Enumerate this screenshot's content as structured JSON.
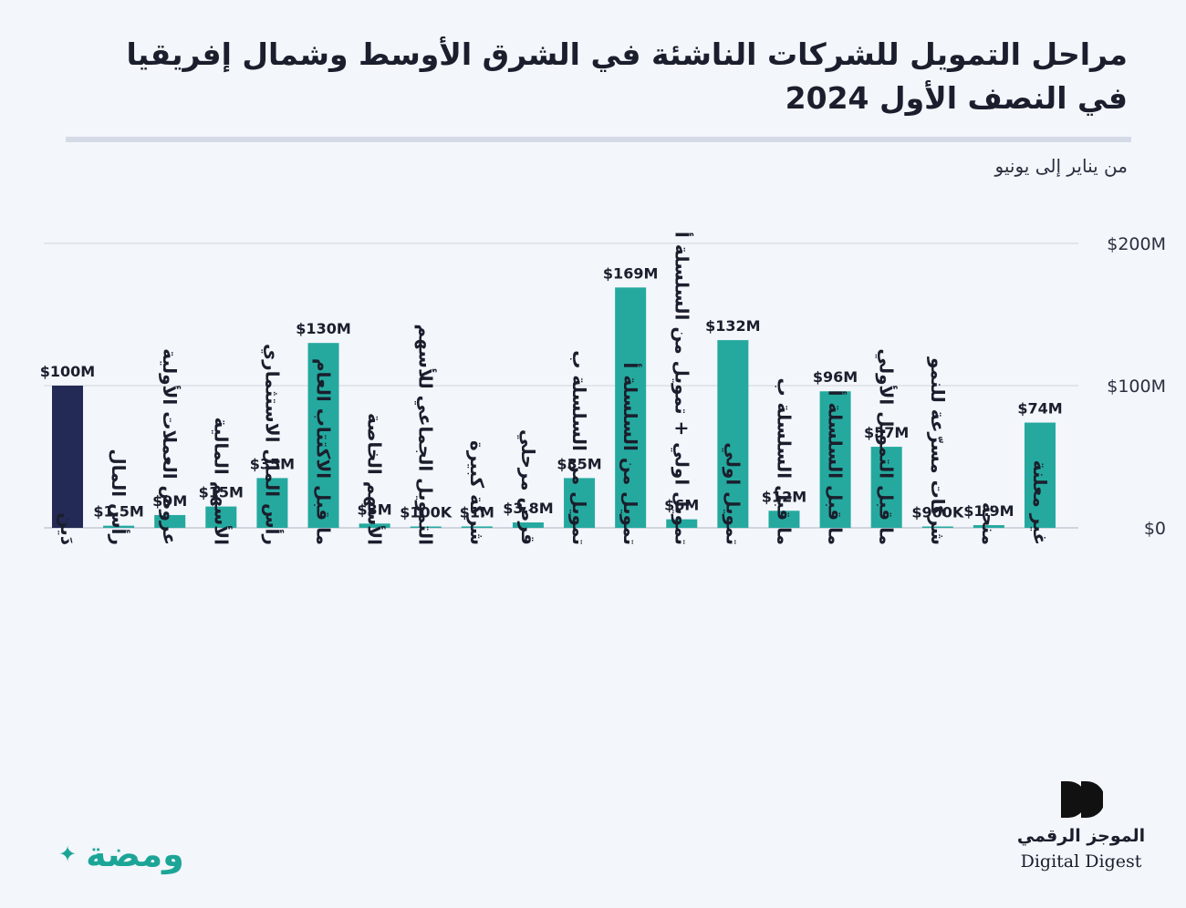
{
  "title": "مراحل التمويل للشركات الناشئة في الشرق الأوسط وشمال إفريقيا في النصف الأول 2024",
  "subtitle": "من يناير إلى يونيو",
  "watermark": "ومضة",
  "watermark_icon": "sparkle-icon",
  "brand": {
    "name_ar": "الموجز الرقمي",
    "name_en": "Digital Digest",
    "icon": "double-d-logo-icon"
  },
  "colors": {
    "highlight": "#232a55",
    "bar": "#25a99f",
    "grid": "#dcdfe6",
    "background": "#f3f6fb"
  },
  "chart_data": {
    "type": "bar",
    "title": "مراحل التمويل للشركات الناشئة في الشرق الأوسط وشمال إفريقيا في النصف الأول 2024",
    "subtitle": "من يناير إلى يونيو",
    "ylim": [
      0,
      200
    ],
    "yunit": "M USD",
    "yticks": [
      "$0",
      "$100M",
      "$200M"
    ],
    "ytick_values": [
      0,
      100,
      200
    ],
    "axis_position": "right",
    "categories": [
      "دَين",
      "رأس المال",
      "عروض العملات الأولية",
      "الأسهم المالية",
      "رأس المال الاستثماري",
      "ما قبل الاكتتاب العام",
      "الأسهم الخاصة",
      "التمويل الجماعي للأسهم",
      "شركة كبيرة",
      "قرض مرحلي",
      "تمويل من السلسلة ب",
      "تمويل من السلسلة أ",
      "تمويل اولي + تمويل من السلسلة أ",
      "تمويل اولي",
      "ما قبل السلسلة ب",
      "ما قبل السلسلة أ",
      "ما قبل التمويل الأولي",
      "شركات مسرّعة للنمو",
      "منحة",
      "غير معلنة"
    ],
    "values": [
      100,
      1.5,
      9,
      15,
      35,
      130,
      3,
      0.1,
      1,
      3.8,
      35,
      169,
      6,
      132,
      12,
      96,
      57,
      0.9,
      1.9,
      74
    ],
    "labels": [
      "$100M",
      "$1.5M",
      "$9M",
      "$15M",
      "$35M",
      "$130M",
      "$3M",
      "$100K",
      "$1M",
      "$3.8M",
      "$35M",
      "$169M",
      "$6M",
      "$132M",
      "$12M",
      "$96M",
      "$57M",
      "$900K",
      "$1.9M",
      "$74M"
    ],
    "highlight_index": 0
  }
}
